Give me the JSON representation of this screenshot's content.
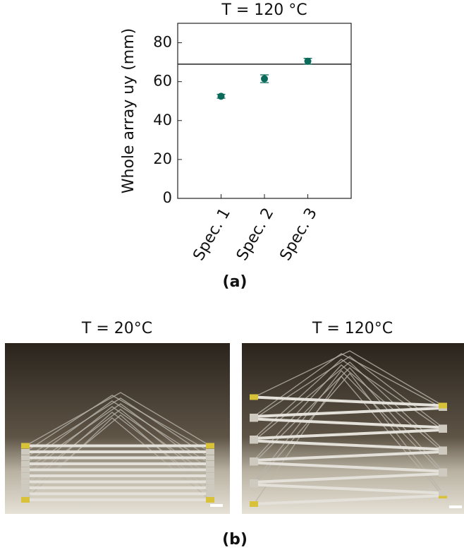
{
  "chart_data": {
    "type": "errorbar",
    "title": "T = 120 °C",
    "y_label": "Whole array uy (mm)",
    "categories": [
      "Spec. 1",
      "Spec. 2",
      "Spec. 3"
    ],
    "series": [
      {
        "color": "#0b6b5a",
        "values": [
          52.5,
          61.5,
          70.5
        ],
        "errors": [
          1,
          2,
          1.5
        ]
      }
    ],
    "reference_line": {
      "value": 69,
      "color": "#222222"
    },
    "ylim": [
      0,
      90
    ],
    "yticks": [
      0,
      20,
      40,
      60,
      80
    ],
    "grid": false
  },
  "figure": {
    "panel_a": "(a)",
    "panel_b": "(b)",
    "photo_left_title": "T = 20°C",
    "photo_right_title": "T = 120°C"
  }
}
